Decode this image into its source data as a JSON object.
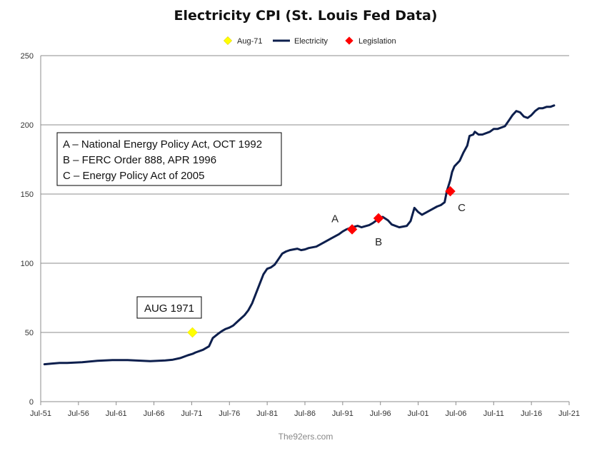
{
  "chart_data": {
    "type": "line",
    "title": "Electricity CPI (St. Louis Fed Data)",
    "xlabel": "",
    "ylabel": "",
    "ylim": [
      0,
      250
    ],
    "yticks": [
      0,
      50,
      100,
      150,
      200,
      250
    ],
    "xticks": [
      "Jul-51",
      "Jul-56",
      "Jul-61",
      "Jul-66",
      "Jul-71",
      "Jul-76",
      "Jul-81",
      "Jul-86",
      "Jul-91",
      "Jul-96",
      "Jul-01",
      "Jul-06",
      "Jul-11",
      "Jul-16",
      "Jul-21"
    ],
    "xlim": [
      1951.5,
      2021.5
    ],
    "grid": "horizontal",
    "legend_position": "top-center",
    "legend": [
      "Aug-71",
      "Electricity",
      "Legislation"
    ],
    "series": [
      {
        "name": "Electricity",
        "color": "#0d1f4d",
        "x": [
          1952.0,
          1953.0,
          1954.0,
          1955.0,
          1956.0,
          1957.0,
          1958.0,
          1959.0,
          1960.0,
          1961.0,
          1962.0,
          1963.0,
          1964.0,
          1965.0,
          1966.0,
          1967.0,
          1968.0,
          1969.0,
          1970.0,
          1971.0,
          1971.6,
          1972.0,
          1973.0,
          1973.8,
          1974.3,
          1975.0,
          1975.5,
          1976.0,
          1976.5,
          1977.0,
          1977.5,
          1978.0,
          1978.5,
          1979.0,
          1979.5,
          1980.0,
          1980.5,
          1981.0,
          1981.5,
          1982.0,
          1982.5,
          1983.0,
          1983.5,
          1984.0,
          1984.5,
          1985.0,
          1985.5,
          1986.0,
          1986.5,
          1987.0,
          1988.0,
          1989.0,
          1990.0,
          1991.0,
          1991.5,
          1992.0,
          1992.75,
          1993.5,
          1994.0,
          1995.0,
          1995.5,
          1996.25,
          1996.8,
          1997.5,
          1998.0,
          1999.0,
          2000.0,
          2000.5,
          2001.0,
          2001.5,
          2002.0,
          2003.0,
          2004.0,
          2004.5,
          2005.0,
          2005.3,
          2005.75,
          2006.0,
          2006.3,
          2007.0,
          2007.5,
          2008.0,
          2008.3,
          2008.8,
          2009.0,
          2009.5,
          2010.0,
          2011.0,
          2011.5,
          2012.0,
          2013.0,
          2013.5,
          2014.0,
          2014.5,
          2015.0,
          2015.5,
          2016.0,
          2016.5,
          2017.0,
          2017.5,
          2018.0,
          2018.5,
          2019.0,
          2019.5
        ],
        "values": [
          27,
          27.5,
          28,
          28,
          28.2,
          28.5,
          29,
          29.5,
          29.8,
          30,
          30,
          30,
          29.8,
          29.5,
          29.3,
          29.5,
          29.8,
          30.3,
          31.5,
          33.5,
          34.5,
          35.5,
          37.5,
          40,
          46,
          49,
          51,
          52.5,
          53.5,
          55,
          57.5,
          60,
          62.5,
          66,
          71,
          78,
          85,
          92,
          96,
          97,
          99,
          103,
          107,
          108.5,
          109.5,
          110,
          110.5,
          109.5,
          110,
          111,
          112,
          115,
          118,
          121,
          123,
          124.5,
          126,
          127,
          126,
          127.5,
          129,
          132,
          133.5,
          131,
          128,
          126,
          127,
          130.5,
          140,
          137,
          135,
          138,
          141,
          142,
          144,
          152,
          160,
          166,
          170,
          174,
          180,
          185,
          192,
          193,
          195,
          193,
          193,
          195,
          197,
          197,
          199,
          203,
          207,
          210,
          209,
          206,
          205,
          207,
          210,
          212,
          212,
          213,
          213,
          214
        ]
      }
    ],
    "markers": [
      {
        "name": "Aug-71",
        "x": 1971.6,
        "y": 50,
        "color": "#ffff00",
        "label": ""
      },
      {
        "name": "Legislation",
        "x": 1992.75,
        "y": 124.5,
        "color": "#ff0000",
        "label": "A"
      },
      {
        "name": "Legislation",
        "x": 1996.25,
        "y": 132.5,
        "color": "#ff0000",
        "label": "B"
      },
      {
        "name": "Legislation",
        "x": 2005.75,
        "y": 152,
        "color": "#ff0000",
        "label": "C"
      }
    ],
    "annotations": [
      "A – National Energy Policy Act, OCT 1992",
      "B – FERC Order 888, APR 1996",
      "C – Energy Policy Act of 2005"
    ],
    "callout": "AUG 1971"
  },
  "footer": "The92ers.com"
}
